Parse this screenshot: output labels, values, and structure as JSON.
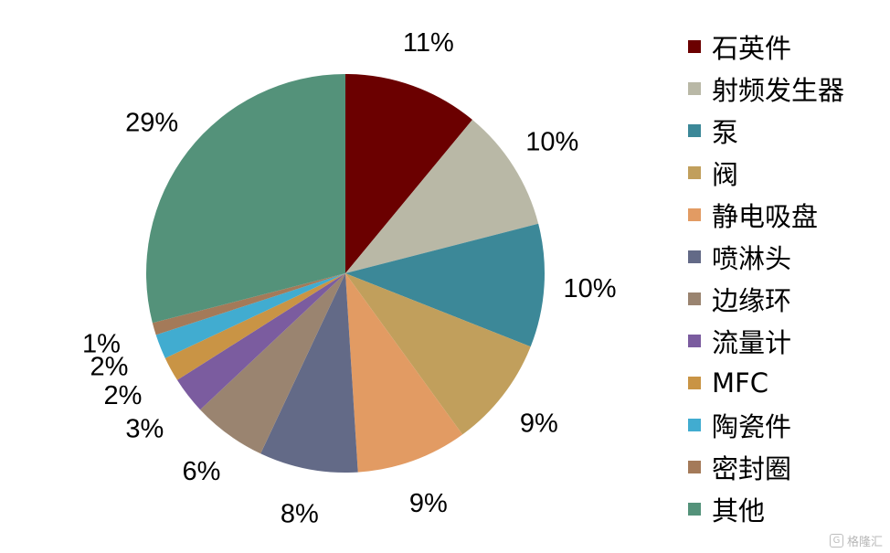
{
  "chart_data": {
    "type": "pie",
    "start_angle_deg": 0,
    "direction": "clockwise",
    "categories": [
      "石英件",
      "射频发生器",
      "泵",
      "阀",
      "静电吸盘",
      "喷淋头",
      "边缘环",
      "流量计",
      "MFC",
      "陶瓷件",
      "密封圈",
      "其他"
    ],
    "values": [
      11,
      10,
      10,
      9,
      9,
      8,
      6,
      3,
      2,
      2,
      1,
      29
    ],
    "labels": [
      "11%",
      "10%",
      "10%",
      "9%",
      "9%",
      "8%",
      "6%",
      "3%",
      "2%",
      "2%",
      "1%",
      "29%"
    ],
    "colors": [
      "#6b0000",
      "#b9b8a6",
      "#3c8898",
      "#c19f5c",
      "#e29b63",
      "#636a87",
      "#9a8470",
      "#7b5c9f",
      "#c99445",
      "#41acd0",
      "#a47a59",
      "#54927a"
    ],
    "legend_position": "right"
  },
  "watermark": {
    "text": "格隆汇",
    "icon": "glh-logo-icon"
  }
}
